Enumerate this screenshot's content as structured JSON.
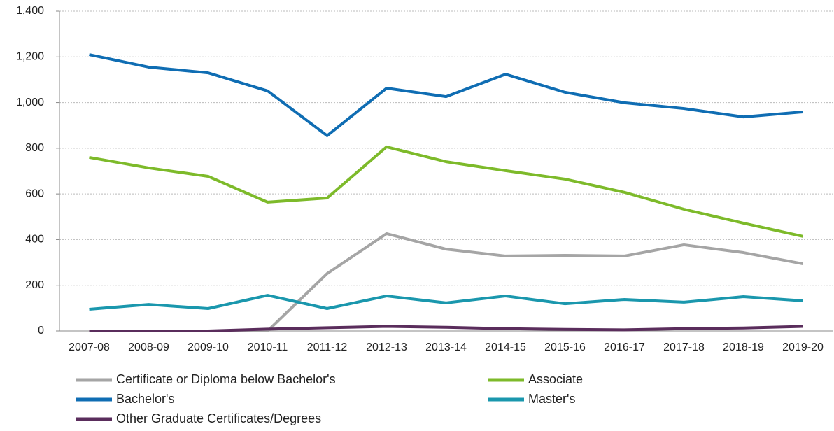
{
  "chart_data": {
    "type": "line",
    "categories": [
      "2007-08",
      "2008-09",
      "2009-10",
      "2010-11",
      "2011-12",
      "2012-13",
      "2013-14",
      "2014-15",
      "2015-16",
      "2016-17",
      "2017-18",
      "2018-19",
      "2019-20"
    ],
    "series": [
      {
        "name": "Certificate or Diploma below Bachelor's",
        "color": "#a5a5a5",
        "values": [
          0,
          0,
          0,
          0,
          251,
          426,
          358,
          328,
          331,
          328,
          377,
          343,
          294
        ]
      },
      {
        "name": "Associate",
        "color": "#7dba2a",
        "values": [
          760,
          714,
          677,
          564,
          582,
          806,
          741,
          702,
          665,
          607,
          533,
          472,
          414
        ]
      },
      {
        "name": "Bachelor's",
        "color": "#0f6db3",
        "values": [
          1210,
          1155,
          1130,
          1051,
          855,
          1063,
          1026,
          1124,
          1045,
          999,
          974,
          937,
          959
        ]
      },
      {
        "name": "Master's",
        "color": "#1a97ad",
        "values": [
          95,
          116,
          98,
          156,
          98,
          153,
          123,
          153,
          119,
          138,
          126,
          150,
          132
        ]
      },
      {
        "name": "Other Graduate Certificates/Degrees",
        "color": "#5a2d5c",
        "values": [
          0,
          0,
          0,
          8,
          14,
          20,
          16,
          10,
          7,
          5,
          10,
          13,
          20
        ]
      }
    ],
    "ylim": [
      0,
      1400
    ],
    "yticks": [
      0,
      200,
      400,
      600,
      800,
      {
        "value": 1000,
        "label": "1,000"
      },
      {
        "value": 1200,
        "label": "1,200"
      },
      {
        "value": 1400,
        "label": "1,400"
      }
    ],
    "grid": true,
    "legend": "bottom"
  }
}
